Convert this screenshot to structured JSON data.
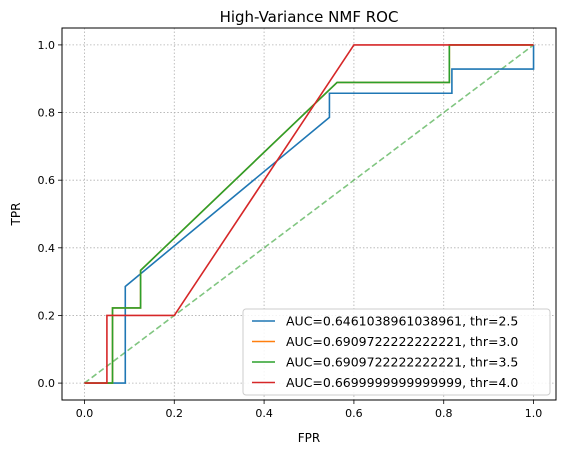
{
  "chart_data": {
    "type": "line",
    "title": "High-Variance NMF ROC",
    "xlabel": "FPR",
    "ylabel": "TPR",
    "xlim": [
      -0.05,
      1.05
    ],
    "ylim": [
      -0.05,
      1.05
    ],
    "xticks": [
      0.0,
      0.2,
      0.4,
      0.6,
      0.8,
      1.0
    ],
    "yticks": [
      0.0,
      0.2,
      0.4,
      0.6,
      0.8,
      1.0
    ],
    "xtick_labels": [
      "0.0",
      "0.2",
      "0.4",
      "0.6",
      "0.8",
      "1.0"
    ],
    "ytick_labels": [
      "0.0",
      "0.2",
      "0.4",
      "0.6",
      "0.8",
      "1.0"
    ],
    "grid": true,
    "legend_position": "lower-right",
    "series": [
      {
        "name": "AUC=0.6461038961038961, thr=2.5",
        "color": "#1f77b4",
        "x": [
          0.0,
          0.0909,
          0.0909,
          0.5455,
          0.5455,
          0.8182,
          0.8182,
          1.0,
          1.0
        ],
        "y": [
          0.0,
          0.0,
          0.2857,
          0.7857,
          0.8571,
          0.8571,
          0.9286,
          0.9286,
          1.0
        ]
      },
      {
        "name": "AUC=0.6909722222222221, thr=3.0",
        "color": "#ff7f0e",
        "x": [
          0.0,
          0.0625,
          0.0625,
          0.125,
          0.125,
          0.5625,
          0.8125,
          0.8125,
          1.0
        ],
        "y": [
          0.0,
          0.0,
          0.2222,
          0.2222,
          0.3333,
          0.8889,
          0.8889,
          1.0,
          1.0
        ]
      },
      {
        "name": "AUC=0.6909722222222221, thr=3.5",
        "color": "#2ca02c",
        "x": [
          0.0,
          0.0625,
          0.0625,
          0.125,
          0.125,
          0.5625,
          0.8125,
          0.8125,
          1.0
        ],
        "y": [
          0.0,
          0.0,
          0.2222,
          0.2222,
          0.3333,
          0.8889,
          0.8889,
          1.0,
          1.0
        ]
      },
      {
        "name": "AUC=0.6699999999999999, thr=4.0",
        "color": "#d62728",
        "x": [
          0.0,
          0.05,
          0.05,
          0.2,
          0.6,
          1.0
        ],
        "y": [
          0.0,
          0.0,
          0.2,
          0.2,
          1.0,
          1.0
        ]
      }
    ],
    "reference_line": {
      "x": [
        0.0,
        1.0
      ],
      "y": [
        0.0,
        1.0
      ],
      "color": "#2ca02c",
      "style": "dashed"
    }
  }
}
